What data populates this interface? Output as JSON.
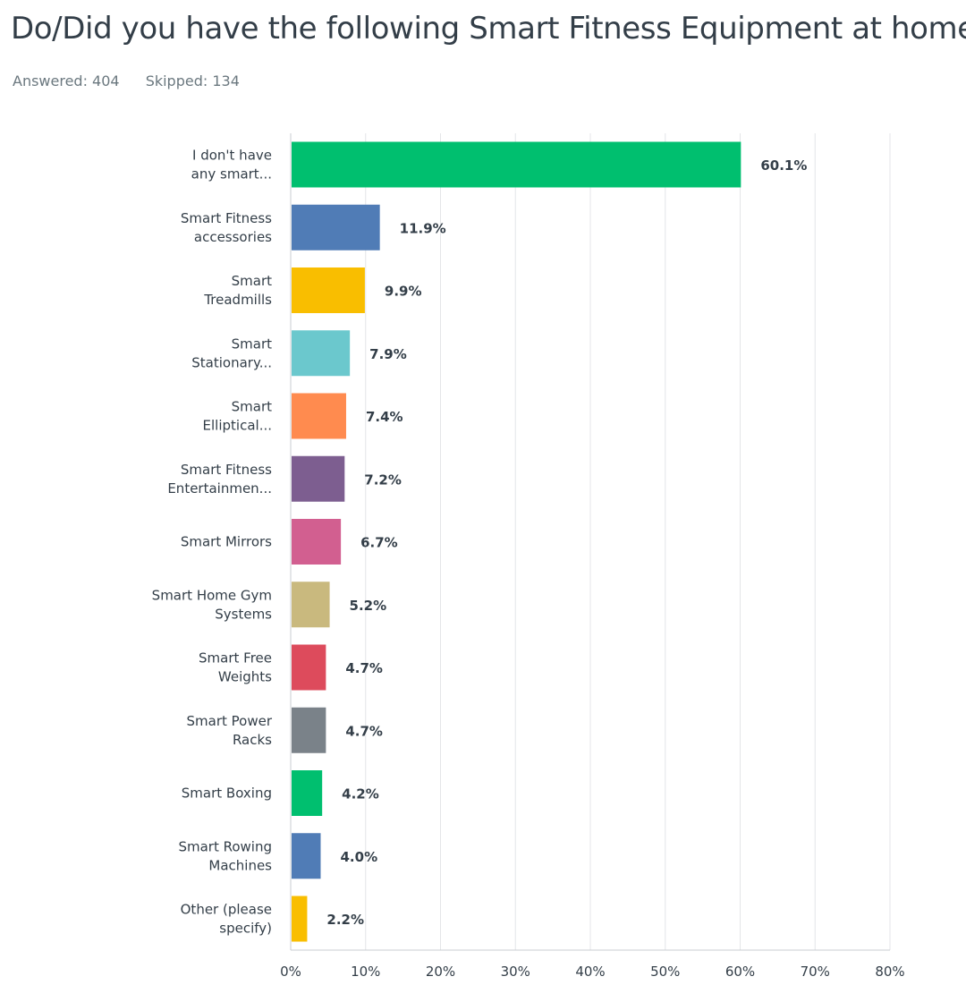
{
  "question": {
    "title": "Do/Did you have the following Smart Fitness Equipment at home?",
    "answered_label": "Answered: 404",
    "skipped_label": "Skipped: 134"
  },
  "chart_data": {
    "type": "bar",
    "orientation": "horizontal",
    "title": "Do/Did you have the following Smart Fitness Equipment at home?",
    "xlabel": "",
    "ylabel": "",
    "xlim": [
      0,
      80
    ],
    "grid": true,
    "categories": [
      [
        "I don't have",
        "any smart..."
      ],
      [
        "Smart Fitness",
        "accessories"
      ],
      [
        "Smart",
        "Treadmills"
      ],
      [
        "Smart",
        "Stationary..."
      ],
      [
        "Smart",
        "Elliptical..."
      ],
      [
        "Smart Fitness",
        "Entertainmen..."
      ],
      [
        "Smart Mirrors"
      ],
      [
        "Smart Home Gym",
        "Systems"
      ],
      [
        "Smart Free",
        "Weights"
      ],
      [
        "Smart Power",
        "Racks"
      ],
      [
        "Smart Boxing"
      ],
      [
        "Smart Rowing",
        "Machines"
      ],
      [
        "Other (please",
        "specify)"
      ]
    ],
    "values": [
      60.1,
      11.9,
      9.9,
      7.9,
      7.4,
      7.2,
      6.7,
      5.2,
      4.7,
      4.7,
      4.2,
      4.0,
      2.2
    ],
    "value_labels": [
      "60.1%",
      "11.9%",
      "9.9%",
      "7.9%",
      "7.4%",
      "7.2%",
      "6.7%",
      "5.2%",
      "4.7%",
      "4.7%",
      "4.2%",
      "4.0%",
      "2.2%"
    ],
    "colors": [
      "#00bf6f",
      "#507cb6",
      "#f9be00",
      "#6bc8cd",
      "#ff8b4f",
      "#7d5e90",
      "#d25f90",
      "#c9b97e",
      "#dd4b5c",
      "#7a8289",
      "#00bf6f",
      "#507cb6",
      "#f9be00"
    ],
    "ticks": [
      0,
      10,
      20,
      30,
      40,
      50,
      60,
      70,
      80
    ],
    "tick_labels": [
      "0%",
      "10%",
      "20%",
      "30%",
      "40%",
      "50%",
      "60%",
      "70%",
      "80%"
    ]
  }
}
